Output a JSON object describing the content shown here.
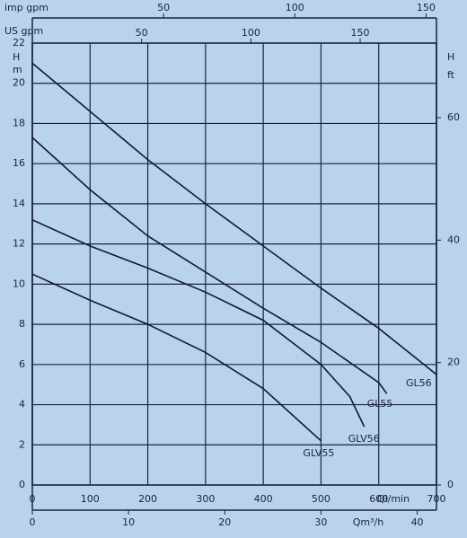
{
  "chart_data": {
    "type": "line",
    "xlabel": "Ql/min",
    "xlim": [
      0,
      700
    ],
    "xticks": [
      0,
      100,
      200,
      300,
      400,
      500,
      600,
      700
    ],
    "ylabel": "H",
    "yunit": "m",
    "ylim": [
      0,
      22
    ],
    "yticks": [
      0,
      2,
      4,
      6,
      8,
      10,
      12,
      14,
      16,
      18,
      20,
      22
    ],
    "y2label": "H",
    "y2unit": "ft",
    "y2lim": [
      0,
      72.18
    ],
    "y2ticks": [
      0,
      20,
      40,
      60
    ],
    "top_axes": [
      {
        "label": "imp gpm",
        "lim": [
          0,
          153.98
        ],
        "ticks": [
          50,
          100,
          150
        ]
      },
      {
        "label": "US gpm",
        "lim": [
          0,
          184.92
        ],
        "ticks": [
          50,
          100,
          150
        ]
      }
    ],
    "bottom_axis": {
      "label": "Qm³/h",
      "lim": [
        0,
        42
      ],
      "ticks": [
        0,
        10,
        20,
        30,
        40
      ]
    },
    "grid": true,
    "series": [
      {
        "name": "GL56",
        "color": "#111a30",
        "x": [
          0,
          100,
          200,
          300,
          400,
          500,
          600,
          700
        ],
        "values": [
          21.0,
          18.6,
          16.2,
          14.0,
          11.9,
          9.8,
          7.8,
          5.5
        ]
      },
      {
        "name": "GL55",
        "color": "#111a30",
        "x": [
          0,
          100,
          200,
          300,
          400,
          500,
          600,
          614
        ],
        "values": [
          17.3,
          14.7,
          12.4,
          10.6,
          8.8,
          7.1,
          5.1,
          4.55
        ]
      },
      {
        "name": "GLV56",
        "color": "#111a30",
        "x": [
          0,
          100,
          200,
          300,
          400,
          500,
          550,
          575
        ],
        "values": [
          13.2,
          11.9,
          10.8,
          9.6,
          8.2,
          6.0,
          4.4,
          2.9
        ]
      },
      {
        "name": "GLV55",
        "color": "#111a30",
        "x": [
          0,
          100,
          200,
          300,
          400,
          450,
          500
        ],
        "values": [
          10.5,
          9.2,
          8.0,
          6.6,
          4.8,
          3.5,
          2.2
        ]
      }
    ]
  }
}
